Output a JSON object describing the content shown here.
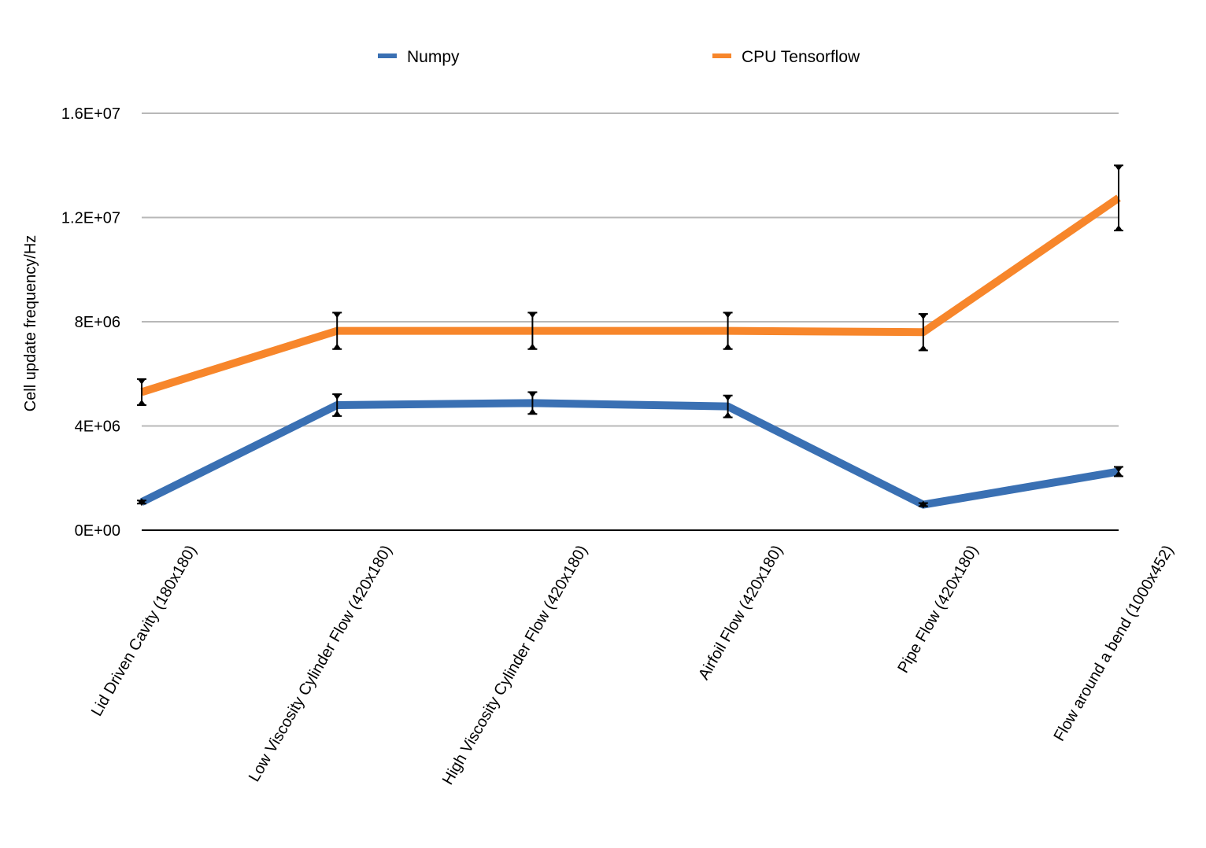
{
  "chart_data": {
    "type": "line",
    "title": "",
    "xlabel": "",
    "ylabel": "Cell update frequency/Hz",
    "ylim": [
      0,
      16000000
    ],
    "yticks": [
      {
        "value": 0,
        "label": "0E+00"
      },
      {
        "value": 4000000,
        "label": "4E+06"
      },
      {
        "value": 8000000,
        "label": "8E+06"
      },
      {
        "value": 12000000,
        "label": "1.2E+07"
      },
      {
        "value": 16000000,
        "label": "1.6E+07"
      }
    ],
    "grid": true,
    "legend_position": "top",
    "categories": [
      "Lid Driven Cavity (180x180)",
      "Low Viscosity Cylinder Flow (420x180)",
      "High Viscosity Cylinder Flow (420x180)",
      "Airfoil Flow (420x180)",
      "Pipe Flow (420x180)",
      "Flow around a bend (1000x452)"
    ],
    "series": [
      {
        "name": "Numpy",
        "color": "#3a70b3",
        "values": [
          1080000,
          4800000,
          4880000,
          4750000,
          980000,
          2250000
        ],
        "error": [
          60000,
          420000,
          420000,
          420000,
          60000,
          180000
        ]
      },
      {
        "name": "CPU Tensorflow",
        "color": "#f7862b",
        "values": [
          5300000,
          7650000,
          7650000,
          7650000,
          7600000,
          12750000
        ],
        "error": [
          500000,
          700000,
          700000,
          700000,
          700000,
          1250000
        ]
      }
    ]
  }
}
